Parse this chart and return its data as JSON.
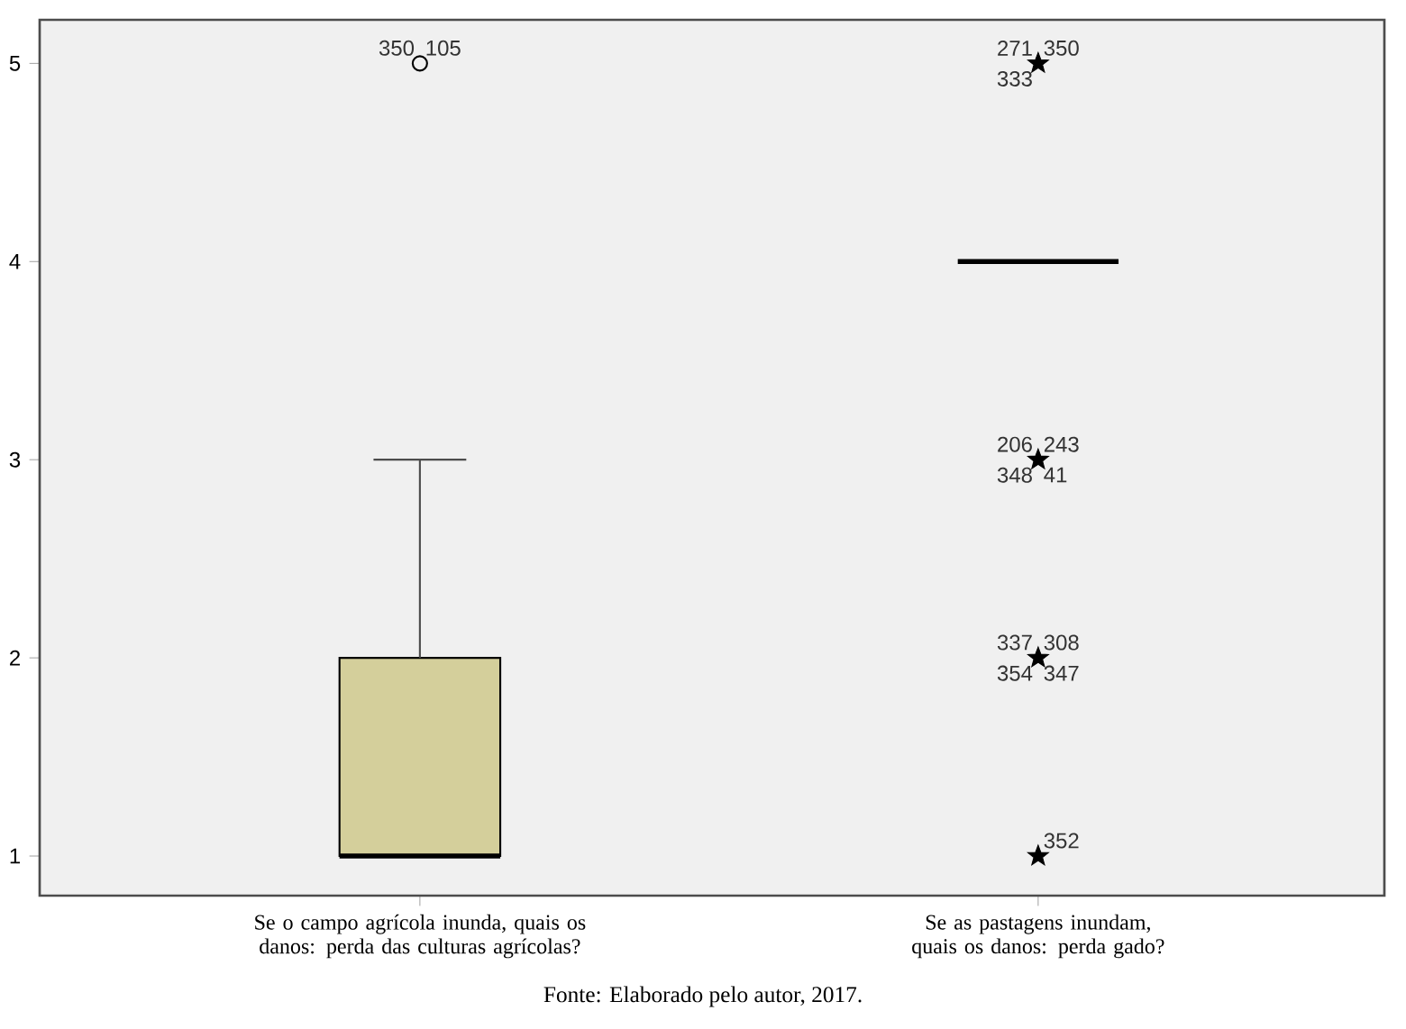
{
  "chart_data": {
    "type": "box",
    "categories": [
      "Se o campo agrícola inunda, quais os danos: perda das culturas agrícolas?",
      "Se as pastagens inundam, quais os danos: perda gado?"
    ],
    "colors": [
      "#d4cf9b",
      null
    ],
    "boxes": [
      {
        "low": 1,
        "q1": 1,
        "median": 1,
        "q3": 2,
        "high": 3
      },
      {
        "low": 4,
        "q1": 4,
        "median": 4,
        "q3": 4,
        "high": 4
      }
    ],
    "series": [
      {
        "type": "scatter",
        "color": "#000000",
        "marker": "circle",
        "x": [
          "Se o campo agrícola inunda, quais os danos: perda das culturas agrícolas?"
        ],
        "values": [
          5
        ]
      },
      {
        "type": "scatter",
        "color": "#000000",
        "marker": "star",
        "x": [
          "Se as pastagens inundam, quais os danos: perda gado?",
          "Se as pastagens inundam, quais os danos: perda gado?",
          "Se as pastagens inundam, quais os danos: perda gado?",
          "Se as pastagens inundam, quais os danos: perda gado?"
        ],
        "values": [
          5,
          3,
          2,
          1
        ]
      }
    ],
    "ylim": [
      0.8,
      5.22
    ],
    "yticks": [
      1,
      2,
      3,
      4,
      5
    ],
    "grid": false,
    "annotations": [
      "Fonte: Elaborado pelo autor, 2017.",
      {
        "text": "350",
        "x": "Se o campo agrícola inunda, quais os danos: perda das culturas agrícolas?",
        "y": 5
      },
      {
        "text": "105",
        "x": "Se o campo agrícola inunda, quais os danos: perda das culturas agrícolas?",
        "y": 5
      },
      {
        "text": "271",
        "x": "Se as pastagens inundam, quais os danos: perda gado?",
        "y": 5
      },
      {
        "text": "350",
        "x": "Se as pastagens inundam, quais os danos: perda gado?",
        "y": 5
      },
      {
        "text": "333",
        "x": "Se as pastagens inundam, quais os danos: perda gado?",
        "y": 5
      },
      {
        "text": "206",
        "x": "Se as pastagens inundam, quais os danos: perda gado?",
        "y": 3
      },
      {
        "text": "243",
        "x": "Se as pastagens inundam, quais os danos: perda gado?",
        "y": 3
      },
      {
        "text": "348",
        "x": "Se as pastagens inundam, quais os danos: perda gado?",
        "y": 3
      },
      {
        "text": "41",
        "x": "Se as pastagens inundam, quais os danos: perda gado?",
        "y": 3
      },
      {
        "text": "337",
        "x": "Se as pastagens inundam, quais os danos: perda gado?",
        "y": 2
      },
      {
        "text": "308",
        "x": "Se as pastagens inundam, quais os danos: perda gado?",
        "y": 2
      },
      {
        "text": "354",
        "x": "Se as pastagens inundam, quais os danos: perda gado?",
        "y": 2
      },
      {
        "text": "347",
        "x": "Se as pastagens inundam, quais os danos: perda gado?",
        "y": 2
      },
      {
        "text": "352",
        "x": "Se as pastagens inundam, quais os danos: perda gado?",
        "y": 1
      }
    ]
  }
}
